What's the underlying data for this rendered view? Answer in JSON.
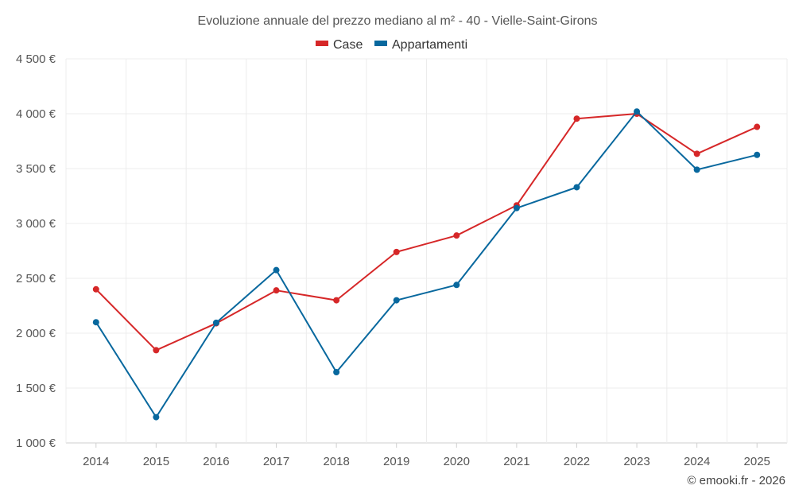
{
  "chart_data": {
    "type": "line",
    "title": "Evoluzione annuale del prezzo mediano al m² - 40 - Vielle-Saint-Girons",
    "categories": [
      "2014",
      "2015",
      "2016",
      "2017",
      "2018",
      "2019",
      "2020",
      "2021",
      "2022",
      "2023",
      "2024",
      "2025"
    ],
    "series": [
      {
        "name": "Case",
        "color": "#d62728",
        "values": [
          2400,
          1845,
          2090,
          2390,
          2300,
          2740,
          2890,
          3165,
          3955,
          4000,
          3635,
          3880
        ]
      },
      {
        "name": "Appartamenti",
        "color": "#08689e",
        "values": [
          2100,
          1235,
          2095,
          2575,
          1645,
          2300,
          2440,
          3140,
          3330,
          4020,
          3490,
          3625
        ]
      }
    ],
    "ylim": [
      1000,
      4500
    ],
    "yticks": [
      1000,
      1500,
      2000,
      2500,
      3000,
      3500,
      4000,
      4500
    ],
    "ytick_labels": [
      "1 000 €",
      "1 500 €",
      "2 000 €",
      "2 500 €",
      "3 000 €",
      "3 500 €",
      "4 000 €",
      "4 500 €"
    ],
    "xlabel": "",
    "ylabel": "",
    "grid": true,
    "legend_position": "top-center"
  },
  "credit": "© emooki.fr - 2026"
}
